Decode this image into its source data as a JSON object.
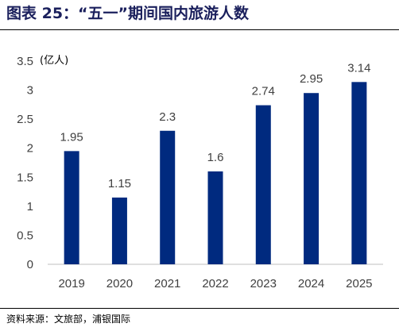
{
  "figure": {
    "title": "图表 25：“五一”期间国内旅游人数",
    "source": "资料来源：文旅部，浦银国际"
  },
  "colors": {
    "bar": "#002a7f",
    "title": "#1a1f5c"
  },
  "chart_data": {
    "type": "bar",
    "title": "",
    "unit_label": "(亿人)",
    "xlabel": "",
    "ylabel": "",
    "categories": [
      "2019",
      "2020",
      "2021",
      "2022",
      "2023",
      "2024",
      "2025"
    ],
    "values": [
      1.95,
      1.15,
      2.3,
      1.6,
      2.74,
      2.95,
      3.14
    ],
    "data_labels": [
      "1.95",
      "1.15",
      "2.3",
      "1.6",
      "2.74",
      "2.95",
      "3.14"
    ],
    "ylim": [
      0,
      3.5
    ],
    "yticks": [
      "0",
      "0.5",
      "1",
      "1.5",
      "2",
      "2.5",
      "3",
      "3.5"
    ],
    "grid": false,
    "legend": "none"
  }
}
